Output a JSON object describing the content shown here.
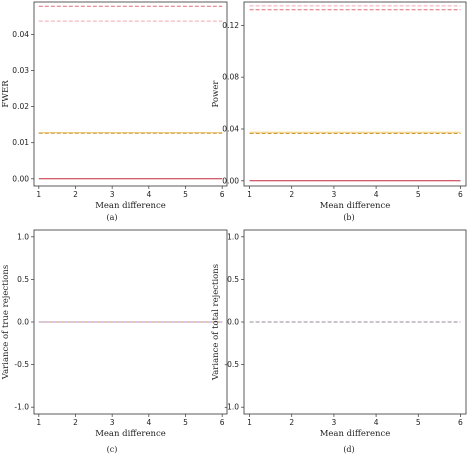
{
  "chart_data": [
    {
      "panel": "(a)",
      "type": "line",
      "xlabel": "Mean difference",
      "ylabel": "FWER",
      "xlim": [
        1,
        6
      ],
      "ylim": [
        -0.002,
        0.049
      ],
      "xticks": [
        1,
        2,
        3,
        4,
        5,
        6
      ],
      "yticks": [
        0.0,
        0.01,
        0.02,
        0.03,
        0.04
      ],
      "ytick_labels": [
        "0.00",
        "0.01",
        "0.02",
        "0.03",
        "0.04"
      ],
      "x": [
        1,
        2,
        3,
        4,
        5,
        6
      ],
      "series": [
        {
          "values": [
            0.0478,
            0.0478,
            0.0478,
            0.0478,
            0.0478,
            0.0478
          ],
          "color": "#e06b78",
          "style": "dashed"
        },
        {
          "values": [
            0.0437,
            0.0437,
            0.0437,
            0.0437,
            0.0437,
            0.0437
          ],
          "color": "#f2a8b0",
          "style": "dashed"
        },
        {
          "values": [
            0.0128,
            0.0128,
            0.0128,
            0.0128,
            0.0128,
            0.0128
          ],
          "color": "#f2c869",
          "style": "solid"
        },
        {
          "values": [
            0.0126,
            0.0126,
            0.0126,
            0.0126,
            0.0126,
            0.0126
          ],
          "color": "#c99a3c",
          "style": "dashed"
        },
        {
          "values": [
            0.0,
            0.0,
            0.0,
            0.0,
            0.0,
            0.0
          ],
          "color": "#c4283a",
          "style": "solid"
        }
      ]
    },
    {
      "panel": "(b)",
      "type": "line",
      "xlabel": "Mean difference",
      "ylabel": "Power",
      "xlim": [
        1,
        6
      ],
      "ylim": [
        -0.004,
        0.138
      ],
      "xticks": [
        1,
        2,
        3,
        4,
        5,
        6
      ],
      "yticks": [
        0.0,
        0.04,
        0.08,
        0.12
      ],
      "ytick_labels": [
        "0.00",
        "0.04",
        "0.08",
        "0.12"
      ],
      "x": [
        1,
        2,
        3,
        4,
        5,
        6
      ],
      "series": [
        {
          "values": [
            0.135,
            0.135,
            0.135,
            0.135,
            0.135,
            0.135
          ],
          "color": "#f2a8b0",
          "style": "dashed"
        },
        {
          "values": [
            0.132,
            0.132,
            0.132,
            0.132,
            0.132,
            0.132
          ],
          "color": "#e06b78",
          "style": "dashed"
        },
        {
          "values": [
            0.0375,
            0.0375,
            0.0375,
            0.0375,
            0.0375,
            0.0375
          ],
          "color": "#f2c869",
          "style": "solid"
        },
        {
          "values": [
            0.0365,
            0.0365,
            0.0365,
            0.0365,
            0.0365,
            0.0365
          ],
          "color": "#c99a3c",
          "style": "dashed"
        },
        {
          "values": [
            0.0,
            0.0,
            0.0,
            0.0,
            0.0,
            0.0
          ],
          "color": "#c4283a",
          "style": "solid"
        }
      ]
    },
    {
      "panel": "(c)",
      "type": "line",
      "xlabel": "Mean difference",
      "ylabel": "Variance of true rejections",
      "xlim": [
        1,
        6
      ],
      "ylim": [
        -1.08,
        1.08
      ],
      "xticks": [
        1,
        2,
        3,
        4,
        5,
        6
      ],
      "yticks": [
        -1.0,
        -0.5,
        0.0,
        0.5,
        1.0
      ],
      "ytick_labels": [
        "-1.0",
        "-0.5",
        "0.0",
        "0.5",
        "1.0"
      ],
      "x": [
        1,
        2,
        3,
        4,
        5,
        6
      ],
      "series": [
        {
          "values": [
            0,
            0,
            0,
            0,
            0,
            0
          ],
          "color": "#c99a3c",
          "style": "solid"
        },
        {
          "values": [
            0,
            0,
            0,
            0,
            0,
            0
          ],
          "color": "#b08fd0",
          "style": "dashed"
        }
      ]
    },
    {
      "panel": "(d)",
      "type": "line",
      "xlabel": "Mean difference",
      "ylabel": "Variance of total rejections",
      "xlim": [
        1,
        6
      ],
      "ylim": [
        -1.08,
        1.08
      ],
      "xticks": [
        1,
        2,
        3,
        4,
        5,
        6
      ],
      "yticks": [
        -1.0,
        -0.5,
        0.0,
        0.5,
        1.0
      ],
      "ytick_labels": [
        "-1.0",
        "-0.5",
        "0.0",
        "0.5",
        "1.0"
      ],
      "x": [
        1,
        2,
        3,
        4,
        5,
        6
      ],
      "series": [
        {
          "values": [
            0,
            0,
            0,
            0,
            0,
            0
          ],
          "color": "#9a8a9a",
          "style": "dashed"
        }
      ]
    }
  ]
}
